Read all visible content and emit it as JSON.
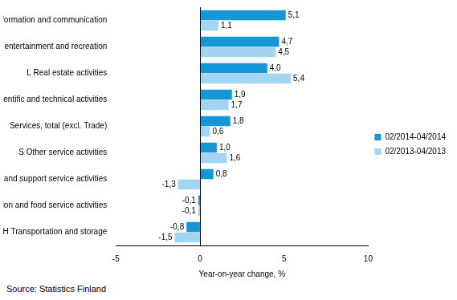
{
  "chart_data": {
    "type": "bar",
    "orientation": "horizontal",
    "categories": [
      "J Information and communication",
      "R Arts, entertainment and recreation",
      "L Real estate activities",
      "M Professional, scientific and technical activities",
      "Services, total (excl. Trade)",
      "S Other service activities",
      "N Administrative and support service activities",
      "I Accommodation and food service activities",
      "H Transportation and storage"
    ],
    "series": [
      {
        "name": "02/2014-04/2014",
        "color": "#1596d6",
        "values": [
          5.1,
          4.7,
          4.0,
          1.9,
          1.8,
          1.0,
          0.8,
          -0.1,
          -0.8
        ],
        "value_labels": [
          "5,1",
          "4,7",
          "4,0",
          "1,9",
          "1,8",
          "1,0",
          "0,8",
          "-0,1",
          "-0,8"
        ]
      },
      {
        "name": "02/2013-04/2013",
        "color": "#a3d5f3",
        "values": [
          1.1,
          4.5,
          5.4,
          1.7,
          0.6,
          1.6,
          -1.3,
          -0.1,
          -1.5
        ],
        "value_labels": [
          "1,1",
          "4,5",
          "5,4",
          "1,7",
          "0,6",
          "1,6",
          "-1,3",
          "-0,1",
          "-1,5"
        ]
      }
    ],
    "xlim": [
      -5,
      10
    ],
    "xticks": [
      -5,
      0,
      5,
      10
    ],
    "xlabel": "Year-on-year change, %",
    "source": "Source: Statistics Finland",
    "legend": "right",
    "grid": false,
    "data_labels": true
  }
}
